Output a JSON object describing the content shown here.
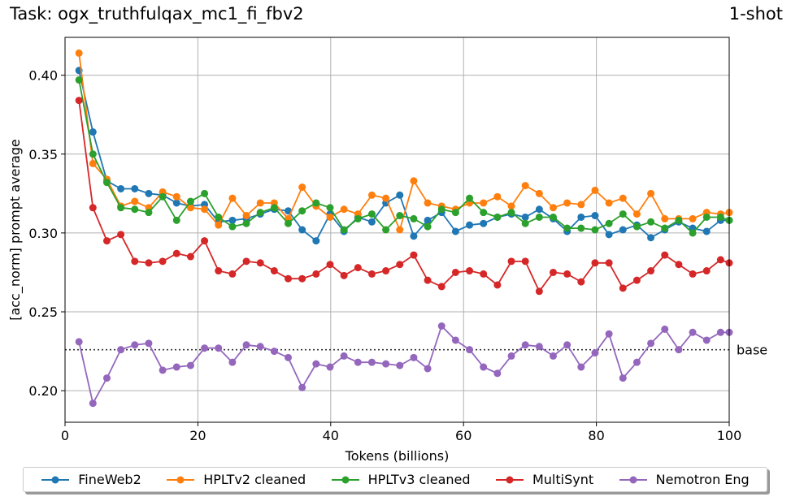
{
  "title_left": "Task: ogx_truthfulqax_mc1_fi_fbv2",
  "title_right": "1-shot",
  "chart_data": {
    "type": "line",
    "xlabel": "Tokens (billions)",
    "ylabel": "[acc_norm] prompt average",
    "xlim": [
      0,
      100
    ],
    "ylim": [
      0.18,
      0.424
    ],
    "xticks": [
      0,
      20,
      40,
      60,
      80,
      100
    ],
    "yticks": [
      0.2,
      0.25,
      0.3,
      0.35,
      0.4
    ],
    "grid": true,
    "legend_position": "bottom-center",
    "x": [
      2.1,
      4.2,
      6.3,
      8.4,
      10.5,
      12.6,
      14.7,
      16.8,
      18.9,
      21.0,
      23.1,
      25.2,
      27.3,
      29.4,
      31.5,
      33.6,
      35.7,
      37.8,
      39.9,
      42.0,
      44.1,
      46.2,
      48.3,
      50.4,
      52.5,
      54.6,
      56.7,
      58.8,
      60.9,
      63.0,
      65.1,
      67.2,
      69.3,
      71.4,
      73.5,
      75.6,
      77.7,
      79.8,
      81.9,
      84.0,
      86.1,
      88.2,
      90.3,
      92.4,
      94.5,
      96.6,
      98.7,
      100.0
    ],
    "series": [
      {
        "name": "FineWeb2",
        "color": "#1f77b4",
        "values": [
          0.403,
          0.364,
          0.333,
          0.328,
          0.328,
          0.325,
          0.324,
          0.319,
          0.317,
          0.318,
          0.307,
          0.308,
          0.309,
          0.312,
          0.315,
          0.314,
          0.302,
          0.295,
          0.312,
          0.301,
          0.31,
          0.307,
          0.319,
          0.324,
          0.298,
          0.308,
          0.313,
          0.301,
          0.305,
          0.306,
          0.31,
          0.312,
          0.31,
          0.315,
          0.309,
          0.301,
          0.31,
          0.311,
          0.299,
          0.302,
          0.305,
          0.297,
          0.302,
          0.307,
          0.303,
          0.301,
          0.308,
          0.308
        ]
      },
      {
        "name": "HPLTv2 cleaned",
        "color": "#ff7f0e",
        "values": [
          0.414,
          0.344,
          0.334,
          0.317,
          0.32,
          0.316,
          0.326,
          0.323,
          0.316,
          0.315,
          0.305,
          0.322,
          0.311,
          0.319,
          0.319,
          0.309,
          0.329,
          0.317,
          0.31,
          0.315,
          0.312,
          0.324,
          0.322,
          0.302,
          0.333,
          0.319,
          0.317,
          0.315,
          0.319,
          0.319,
          0.323,
          0.317,
          0.33,
          0.325,
          0.316,
          0.319,
          0.318,
          0.327,
          0.319,
          0.322,
          0.312,
          0.325,
          0.309,
          0.309,
          0.309,
          0.313,
          0.312,
          0.313
        ]
      },
      {
        "name": "HPLTv3 cleaned",
        "color": "#2ca02c",
        "values": [
          0.397,
          0.35,
          0.332,
          0.316,
          0.315,
          0.313,
          0.323,
          0.308,
          0.32,
          0.325,
          0.31,
          0.304,
          0.306,
          0.313,
          0.316,
          0.306,
          0.314,
          0.319,
          0.316,
          0.302,
          0.309,
          0.312,
          0.302,
          0.311,
          0.309,
          0.304,
          0.315,
          0.313,
          0.322,
          0.313,
          0.31,
          0.313,
          0.306,
          0.31,
          0.31,
          0.303,
          0.303,
          0.302,
          0.306,
          0.312,
          0.304,
          0.307,
          0.303,
          0.308,
          0.3,
          0.31,
          0.31,
          0.308
        ]
      },
      {
        "name": "MultiSynt",
        "color": "#d62728",
        "values": [
          0.384,
          0.316,
          0.295,
          0.299,
          0.282,
          0.281,
          0.282,
          0.287,
          0.285,
          0.295,
          0.276,
          0.274,
          0.282,
          0.281,
          0.276,
          0.271,
          0.271,
          0.274,
          0.28,
          0.273,
          0.278,
          0.274,
          0.276,
          0.28,
          0.286,
          0.27,
          0.266,
          0.275,
          0.276,
          0.274,
          0.267,
          0.282,
          0.282,
          0.263,
          0.275,
          0.274,
          0.269,
          0.281,
          0.281,
          0.265,
          0.27,
          0.276,
          0.286,
          0.28,
          0.274,
          0.276,
          0.283,
          0.281
        ]
      },
      {
        "name": "Nemotron Eng",
        "color": "#9467bd",
        "values": [
          0.231,
          0.192,
          0.208,
          0.226,
          0.229,
          0.23,
          0.213,
          0.215,
          0.216,
          0.227,
          0.227,
          0.218,
          0.229,
          0.228,
          0.225,
          0.221,
          0.202,
          0.217,
          0.215,
          0.222,
          0.218,
          0.218,
          0.217,
          0.216,
          0.221,
          0.214,
          0.241,
          0.232,
          0.226,
          0.215,
          0.211,
          0.222,
          0.229,
          0.228,
          0.222,
          0.229,
          0.215,
          0.224,
          0.236,
          0.208,
          0.218,
          0.23,
          0.239,
          0.226,
          0.237,
          0.232,
          0.237,
          0.237
        ]
      }
    ],
    "reference_line": {
      "label": "base",
      "y": 0.226,
      "style": "dotted",
      "color": "#333333"
    }
  }
}
